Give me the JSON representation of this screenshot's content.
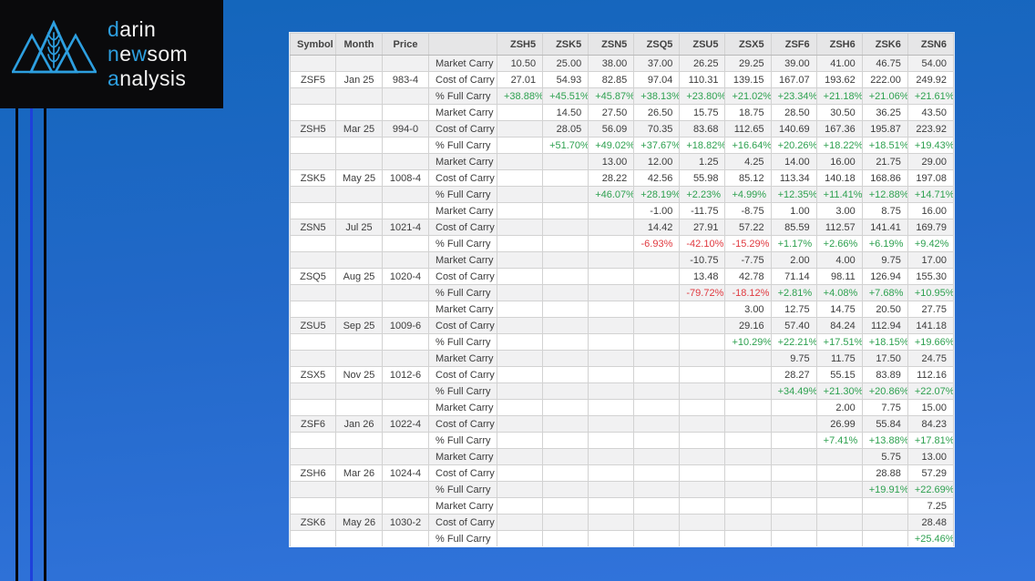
{
  "colors": {
    "brand-blue": "#2d9fe0",
    "positive-green": "#2ea150",
    "negative-red": "#e03a40",
    "accent-line-blue": "#1e40db",
    "bg-top": "#1366bb",
    "bg-bottom": "#3274dc"
  },
  "brand": {
    "lines": [
      {
        "segments": [
          {
            "text": "d",
            "blue": true
          },
          {
            "text": "arin",
            "blue": false
          }
        ]
      },
      {
        "segments": [
          {
            "text": "n",
            "blue": true
          },
          {
            "text": "e",
            "blue": false
          },
          {
            "text": "w",
            "blue": true
          },
          {
            "text": "som",
            "blue": false
          }
        ]
      },
      {
        "segments": [
          {
            "text": "a",
            "blue": true
          },
          {
            "text": "nalysis",
            "blue": false
          }
        ]
      }
    ],
    "logo_icon": "mountains-wheat-icon"
  },
  "table": {
    "id_headers": [
      "Symbol",
      "Month",
      "Price",
      ""
    ],
    "contract_headers": [
      "ZSH5",
      "ZSK5",
      "ZSN5",
      "ZSQ5",
      "ZSU5",
      "ZSX5",
      "ZSF6",
      "ZSH6",
      "ZSK6",
      "ZSN6"
    ],
    "row_labels": {
      "market": "Market Carry",
      "cost": "Cost of Carry",
      "pct": "% Full Carry"
    },
    "groups": [
      {
        "symbol": "ZSF5",
        "month": "Jan 25",
        "price": "983-4",
        "market_carry": [
          "10.50",
          "25.00",
          "38.00",
          "37.00",
          "26.25",
          "29.25",
          "39.00",
          "41.00",
          "46.75",
          "54.00"
        ],
        "cost_of_carry": [
          "27.01",
          "54.93",
          "82.85",
          "97.04",
          "110.31",
          "139.15",
          "167.07",
          "193.62",
          "222.00",
          "249.92"
        ],
        "pct_full_carry": [
          "+38.88%",
          "+45.51%",
          "+45.87%",
          "+38.13%",
          "+23.80%",
          "+21.02%",
          "+23.34%",
          "+21.18%",
          "+21.06%",
          "+21.61%"
        ]
      },
      {
        "symbol": "ZSH5",
        "month": "Mar 25",
        "price": "994-0",
        "market_carry": [
          "",
          "14.50",
          "27.50",
          "26.50",
          "15.75",
          "18.75",
          "28.50",
          "30.50",
          "36.25",
          "43.50"
        ],
        "cost_of_carry": [
          "",
          "28.05",
          "56.09",
          "70.35",
          "83.68",
          "112.65",
          "140.69",
          "167.36",
          "195.87",
          "223.92"
        ],
        "pct_full_carry": [
          "",
          "+51.70%",
          "+49.02%",
          "+37.67%",
          "+18.82%",
          "+16.64%",
          "+20.26%",
          "+18.22%",
          "+18.51%",
          "+19.43%"
        ]
      },
      {
        "symbol": "ZSK5",
        "month": "May 25",
        "price": "1008-4",
        "market_carry": [
          "",
          "",
          "13.00",
          "12.00",
          "1.25",
          "4.25",
          "14.00",
          "16.00",
          "21.75",
          "29.00"
        ],
        "cost_of_carry": [
          "",
          "",
          "28.22",
          "42.56",
          "55.98",
          "85.12",
          "113.34",
          "140.18",
          "168.86",
          "197.08"
        ],
        "pct_full_carry": [
          "",
          "",
          "+46.07%",
          "+28.19%",
          "+2.23%",
          "+4.99%",
          "+12.35%",
          "+11.41%",
          "+12.88%",
          "+14.71%"
        ]
      },
      {
        "symbol": "ZSN5",
        "month": "Jul 25",
        "price": "1021-4",
        "market_carry": [
          "",
          "",
          "",
          "-1.00",
          "-11.75",
          "-8.75",
          "1.00",
          "3.00",
          "8.75",
          "16.00"
        ],
        "cost_of_carry": [
          "",
          "",
          "",
          "14.42",
          "27.91",
          "57.22",
          "85.59",
          "112.57",
          "141.41",
          "169.79"
        ],
        "pct_full_carry": [
          "",
          "",
          "",
          "-6.93%",
          "-42.10%",
          "-15.29%",
          "+1.17%",
          "+2.66%",
          "+6.19%",
          "+9.42%"
        ]
      },
      {
        "symbol": "ZSQ5",
        "month": "Aug 25",
        "price": "1020-4",
        "market_carry": [
          "",
          "",
          "",
          "",
          "-10.75",
          "-7.75",
          "2.00",
          "4.00",
          "9.75",
          "17.00"
        ],
        "cost_of_carry": [
          "",
          "",
          "",
          "",
          "13.48",
          "42.78",
          "71.14",
          "98.11",
          "126.94",
          "155.30"
        ],
        "pct_full_carry": [
          "",
          "",
          "",
          "",
          "-79.72%",
          "-18.12%",
          "+2.81%",
          "+4.08%",
          "+7.68%",
          "+10.95%"
        ]
      },
      {
        "symbol": "ZSU5",
        "month": "Sep 25",
        "price": "1009-6",
        "market_carry": [
          "",
          "",
          "",
          "",
          "",
          "3.00",
          "12.75",
          "14.75",
          "20.50",
          "27.75"
        ],
        "cost_of_carry": [
          "",
          "",
          "",
          "",
          "",
          "29.16",
          "57.40",
          "84.24",
          "112.94",
          "141.18"
        ],
        "pct_full_carry": [
          "",
          "",
          "",
          "",
          "",
          "+10.29%",
          "+22.21%",
          "+17.51%",
          "+18.15%",
          "+19.66%"
        ]
      },
      {
        "symbol": "ZSX5",
        "month": "Nov 25",
        "price": "1012-6",
        "market_carry": [
          "",
          "",
          "",
          "",
          "",
          "",
          "9.75",
          "11.75",
          "17.50",
          "24.75"
        ],
        "cost_of_carry": [
          "",
          "",
          "",
          "",
          "",
          "",
          "28.27",
          "55.15",
          "83.89",
          "112.16"
        ],
        "pct_full_carry": [
          "",
          "",
          "",
          "",
          "",
          "",
          "+34.49%",
          "+21.30%",
          "+20.86%",
          "+22.07%"
        ]
      },
      {
        "symbol": "ZSF6",
        "month": "Jan 26",
        "price": "1022-4",
        "market_carry": [
          "",
          "",
          "",
          "",
          "",
          "",
          "",
          "2.00",
          "7.75",
          "15.00"
        ],
        "cost_of_carry": [
          "",
          "",
          "",
          "",
          "",
          "",
          "",
          "26.99",
          "55.84",
          "84.23"
        ],
        "pct_full_carry": [
          "",
          "",
          "",
          "",
          "",
          "",
          "",
          "+7.41%",
          "+13.88%",
          "+17.81%"
        ]
      },
      {
        "symbol": "ZSH6",
        "month": "Mar 26",
        "price": "1024-4",
        "market_carry": [
          "",
          "",
          "",
          "",
          "",
          "",
          "",
          "",
          "5.75",
          "13.00"
        ],
        "cost_of_carry": [
          "",
          "",
          "",
          "",
          "",
          "",
          "",
          "",
          "28.88",
          "57.29"
        ],
        "pct_full_carry": [
          "",
          "",
          "",
          "",
          "",
          "",
          "",
          "",
          "+19.91%",
          "+22.69%"
        ]
      },
      {
        "symbol": "ZSK6",
        "month": "May 26",
        "price": "1030-2",
        "market_carry": [
          "",
          "",
          "",
          "",
          "",
          "",
          "",
          "",
          "",
          "7.25"
        ],
        "cost_of_carry": [
          "",
          "",
          "",
          "",
          "",
          "",
          "",
          "",
          "",
          "28.48"
        ],
        "pct_full_carry": [
          "",
          "",
          "",
          "",
          "",
          "",
          "",
          "",
          "",
          "+25.46%"
        ]
      }
    ]
  }
}
